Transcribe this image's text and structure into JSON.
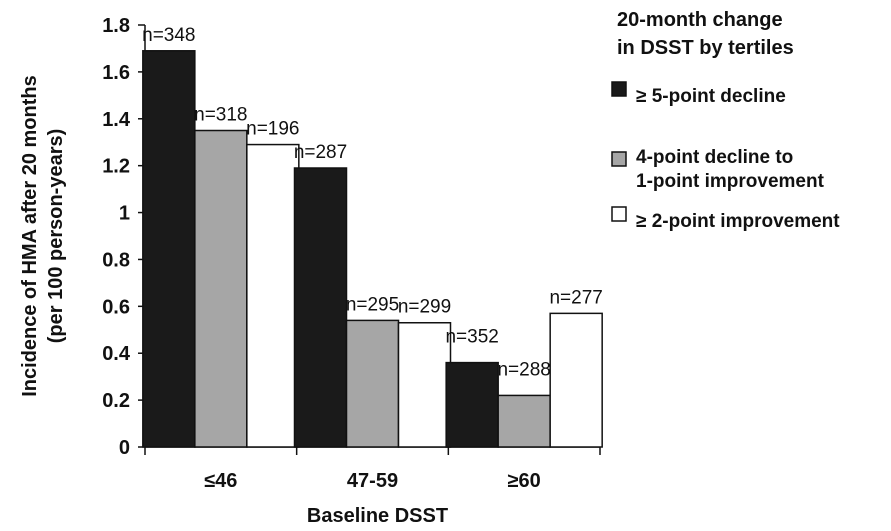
{
  "chart_data": {
    "type": "bar",
    "categories": [
      "≤46",
      "47-59",
      "≥60"
    ],
    "series": [
      {
        "name": "≥ 5-point decline",
        "color": "#1a1a1a",
        "values": [
          1.69,
          1.19,
          0.36
        ],
        "n_labels": [
          "n=348",
          "n=287",
          "n=352"
        ]
      },
      {
        "name": "4-point decline to 1-point improvement",
        "name_lines": [
          "4-point decline to",
          "1-point improvement"
        ],
        "color": "#a6a6a6",
        "values": [
          1.35,
          0.54,
          0.22
        ],
        "n_labels": [
          "n=318",
          "n=295",
          "n=288"
        ]
      },
      {
        "name": "≥ 2-point improvement",
        "color": "#ffffff",
        "values": [
          1.29,
          0.53,
          0.57
        ],
        "n_labels": [
          "n=196",
          "n=299",
          "n=277"
        ]
      }
    ],
    "ylabel_lines": [
      "Incidence of HMA after 20 months",
      "(per 100 person-years)"
    ],
    "xlabel": "Baseline DSST",
    "ylim": [
      0,
      1.8
    ],
    "yticks": [
      "0",
      "0.2",
      "0.4",
      "0.6",
      "0.8",
      "1",
      "1.2",
      "1.4",
      "1.6",
      "1.8"
    ],
    "legend_title_lines": [
      "20-month change",
      "in DSST by tertiles"
    ],
    "legend_position": "top-right",
    "grid": false
  }
}
